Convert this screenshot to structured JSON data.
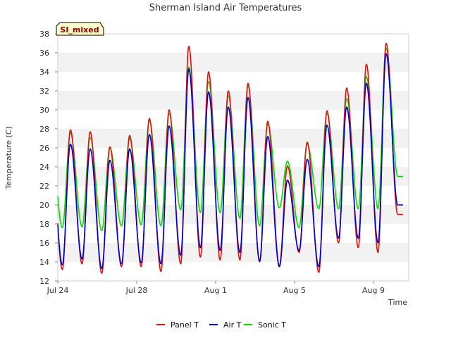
{
  "chart_data": {
    "type": "line",
    "title": "Sherman Island Air Temperatures",
    "xlabel": "Time",
    "ylabel": "Temperature (C)",
    "badge": "SI_mixed",
    "ylim": [
      12,
      38
    ],
    "yticks": [
      12,
      14,
      16,
      18,
      20,
      22,
      24,
      26,
      28,
      30,
      32,
      34,
      36,
      38
    ],
    "xlim": [
      "2023-07-24",
      "2023-08-10T12:00"
    ],
    "xticks": [
      {
        "label": "Jul 24",
        "day": 0
      },
      {
        "label": "Jul 28",
        "day": 4
      },
      {
        "label": "Aug 1",
        "day": 8
      },
      {
        "label": "Aug 5",
        "day": 12
      },
      {
        "label": "Aug 9",
        "day": 16
      }
    ],
    "grid": "horizontal bands",
    "legend_position": "bottom",
    "daily_extremes": {
      "dates": [
        "Jul 24",
        "Jul 25",
        "Jul 26",
        "Jul 27",
        "Jul 28",
        "Jul 29",
        "Jul 30",
        "Jul 31",
        "Aug 1",
        "Aug 2",
        "Aug 3",
        "Aug 4",
        "Aug 5",
        "Aug 6",
        "Aug 7",
        "Aug 8",
        "Aug 9",
        "Aug 10"
      ],
      "series": [
        {
          "name": "Panel T",
          "color": "#e01010",
          "min": [
            13.2,
            13.8,
            12.8,
            13.5,
            13.5,
            13.0,
            13.8,
            14.5,
            14.2,
            14.2,
            14.0,
            13.6,
            15.0,
            12.9,
            16.0,
            15.5,
            15.0,
            19.0
          ],
          "max": [
            27.9,
            27.7,
            26.1,
            27.3,
            29.1,
            30.0,
            36.7,
            34.0,
            32.0,
            32.8,
            28.8,
            24.1,
            26.6,
            29.9,
            32.3,
            34.8,
            37.0
          ]
        },
        {
          "name": "Air T",
          "color": "#0000cc",
          "min": [
            13.7,
            14.3,
            13.3,
            13.8,
            13.9,
            13.8,
            14.7,
            15.5,
            15.2,
            15.0,
            14.1,
            13.5,
            15.2,
            13.5,
            16.5,
            16.5,
            16.0,
            20.0
          ],
          "max": [
            26.4,
            25.9,
            24.7,
            25.9,
            27.4,
            28.3,
            34.3,
            31.9,
            30.3,
            31.3,
            27.2,
            22.6,
            24.8,
            28.4,
            30.3,
            32.8,
            35.9
          ]
        },
        {
          "name": "Sonic T",
          "color": "#00e000",
          "min": [
            17.6,
            17.7,
            17.3,
            17.8,
            17.9,
            17.8,
            19.5,
            19.2,
            19.2,
            18.6,
            17.8,
            19.7,
            17.6,
            19.6,
            19.6,
            19.6,
            19.6,
            23.0
          ],
          "max": [
            27.6,
            27.1,
            26.0,
            27.0,
            28.9,
            29.6,
            34.5,
            33.0,
            31.5,
            32.5,
            28.5,
            24.6,
            26.4,
            29.6,
            31.2,
            33.5,
            36.5
          ]
        }
      ]
    }
  }
}
